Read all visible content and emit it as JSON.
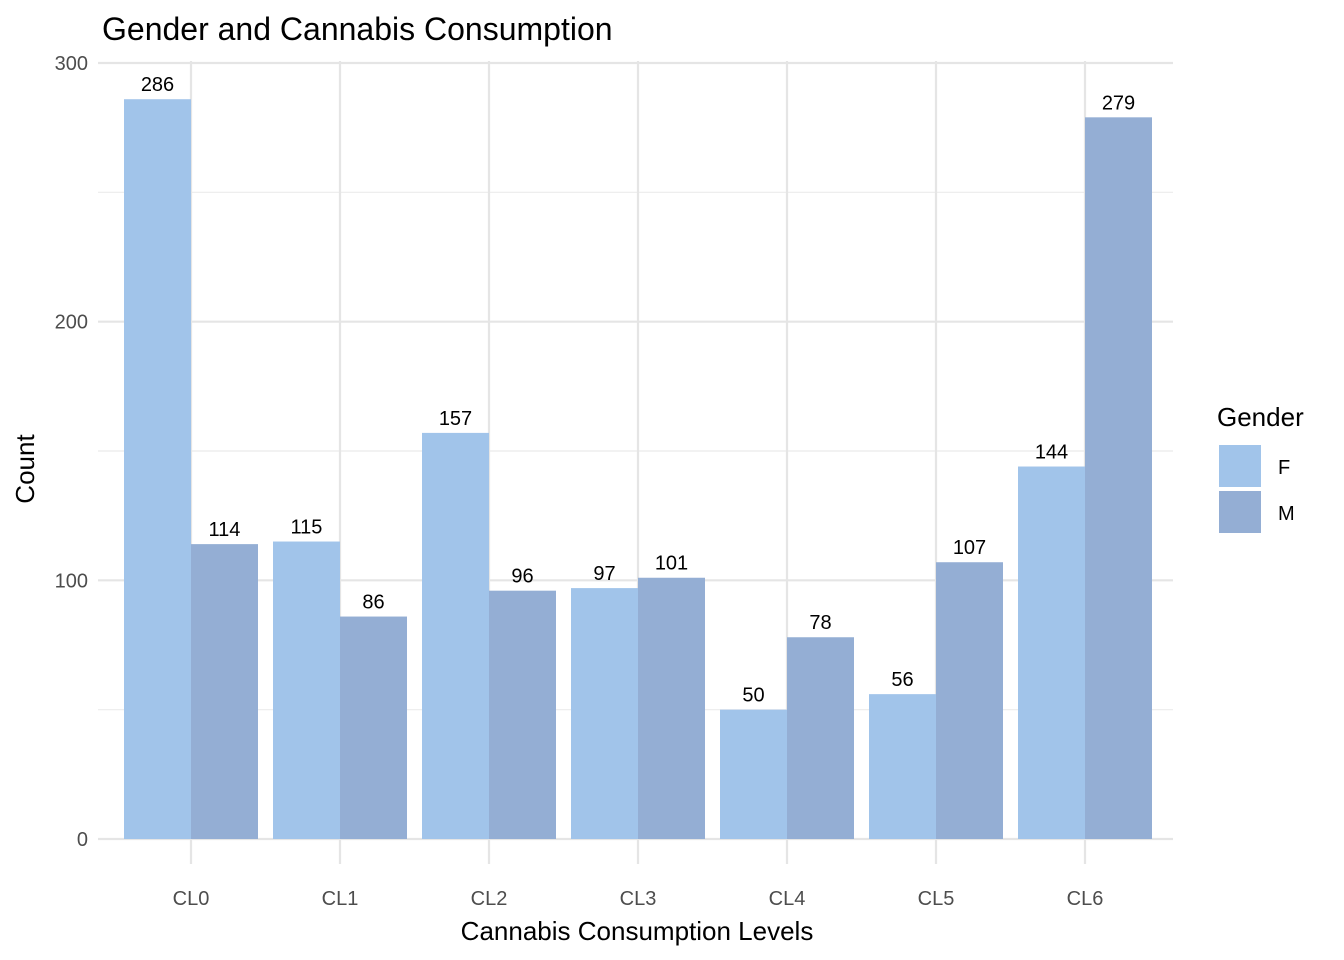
{
  "chart_data": {
    "type": "bar",
    "title": "Gender and Cannabis Consumption",
    "xlabel": "Cannabis Consumption Levels",
    "ylabel": "Count",
    "categories": [
      "CL0",
      "CL1",
      "CL2",
      "CL3",
      "CL4",
      "CL5",
      "CL6"
    ],
    "series": [
      {
        "name": "F",
        "color": "#a1c4ea",
        "values": [
          286,
          115,
          157,
          97,
          50,
          56,
          144
        ]
      },
      {
        "name": "M",
        "color": "#94aed4",
        "values": [
          114,
          86,
          96,
          101,
          78,
          107,
          279
        ]
      }
    ],
    "ylim": [
      0,
      300
    ],
    "y_ticks": [
      0,
      100,
      200,
      300
    ],
    "y_minor_ticks": [
      50,
      150,
      250
    ],
    "grid": true,
    "legend": {
      "title": "Gender",
      "placement": "right"
    }
  }
}
